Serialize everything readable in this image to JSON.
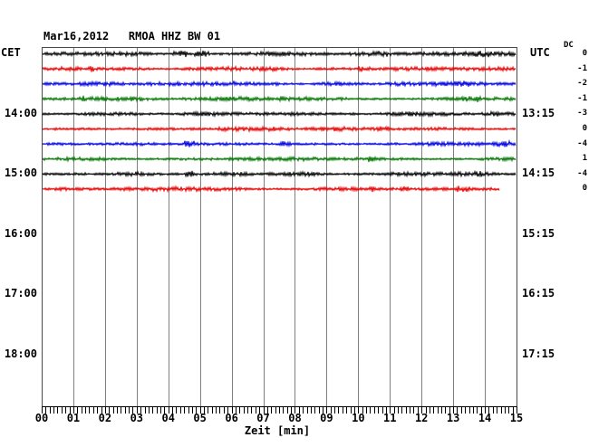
{
  "header": {
    "title": "Mar16,2012   RMOA HHZ BW 01"
  },
  "left_axis": {
    "label": "CET",
    "hours": [
      {
        "label": "14:00",
        "row": 4
      },
      {
        "label": "15:00",
        "row": 8
      },
      {
        "label": "16:00",
        "row": 12
      },
      {
        "label": "17:00",
        "row": 16
      },
      {
        "label": "18:00",
        "row": 20
      }
    ]
  },
  "right_axis": {
    "label": "UTC",
    "hours": [
      {
        "label": "13:15",
        "row": 4
      },
      {
        "label": "14:15",
        "row": 8
      },
      {
        "label": "15:15",
        "row": 12
      },
      {
        "label": "16:15",
        "row": 16
      },
      {
        "label": "17:15",
        "row": 20
      }
    ]
  },
  "dc_column": {
    "label": "DC",
    "values": [
      "0",
      "-1",
      "-2",
      "-1",
      "-3",
      "0",
      "-4",
      "1",
      "-4",
      "0"
    ]
  },
  "xaxis": {
    "label": "Zeit [min]",
    "ticks": [
      "00",
      "01",
      "02",
      "03",
      "04",
      "05",
      "06",
      "07",
      "08",
      "09",
      "10",
      "11",
      "12",
      "13",
      "14",
      "15"
    ]
  },
  "chart_data": {
    "type": "line",
    "title": "Mar16,2012   RMOA HHZ BW 01",
    "xlabel": "Zeit [min]",
    "x_range_minutes": [
      0,
      15
    ],
    "x_tick_labels": [
      "00",
      "01",
      "02",
      "03",
      "04",
      "05",
      "06",
      "07",
      "08",
      "09",
      "10",
      "11",
      "12",
      "13",
      "14",
      "15"
    ],
    "minor_ticks_per_minute": 8,
    "grid": true,
    "left_time_axis": {
      "label": "CET",
      "tick_labels": [
        "14:00",
        "15:00",
        "16:00",
        "17:00",
        "18:00"
      ]
    },
    "right_time_axis": {
      "label": "UTC",
      "tick_labels": [
        "13:15",
        "14:15",
        "15:15",
        "16:15",
        "17:15"
      ]
    },
    "dc_offsets": [
      0,
      -1,
      -2,
      -1,
      -3,
      0,
      -4,
      1,
      -4,
      0
    ],
    "trace_colors": {
      "black": "#000000",
      "red": "#e60000",
      "blue": "#0000e0",
      "green": "#007300"
    },
    "grid_color": "#7f7f7f",
    "traces": [
      {
        "row": 0,
        "color": "black",
        "dc": 0,
        "start_min": 0,
        "end_min": 15
      },
      {
        "row": 1,
        "color": "red",
        "dc": -1,
        "start_min": 0,
        "end_min": 15
      },
      {
        "row": 2,
        "color": "blue",
        "dc": -2,
        "start_min": 0,
        "end_min": 15
      },
      {
        "row": 3,
        "color": "green",
        "dc": -1,
        "start_min": 0,
        "end_min": 15
      },
      {
        "row": 4,
        "color": "black",
        "dc": -3,
        "start_min": 0,
        "end_min": 15,
        "cet": "14:00",
        "utc": "13:15"
      },
      {
        "row": 5,
        "color": "red",
        "dc": 0,
        "start_min": 0,
        "end_min": 15
      },
      {
        "row": 6,
        "color": "blue",
        "dc": -4,
        "start_min": 0,
        "end_min": 15
      },
      {
        "row": 7,
        "color": "green",
        "dc": 1,
        "start_min": 0,
        "end_min": 15
      },
      {
        "row": 8,
        "color": "black",
        "dc": -4,
        "start_min": 0,
        "end_min": 15,
        "cet": "15:00",
        "utc": "14:15"
      },
      {
        "row": 9,
        "color": "red",
        "dc": 0,
        "start_min": 0,
        "end_min": 14.5
      }
    ],
    "description": "Helicorder-style seismogram: ten 15-minute background-noise traces, colors cycling black/red/blue/green, last trace still recording (ends at ~14.5 min)."
  }
}
